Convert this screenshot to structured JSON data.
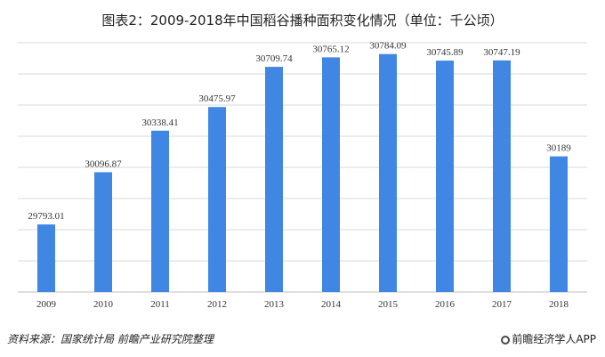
{
  "chart_data": {
    "type": "bar",
    "title": "图表2：2009-2018年中国稻谷播种面积变化情况（单位：千公顷）",
    "categories": [
      "2009",
      "2010",
      "2011",
      "2012",
      "2013",
      "2014",
      "2015",
      "2016",
      "2017",
      "2018"
    ],
    "values": [
      29793.01,
      30096.87,
      30338.41,
      30475.97,
      30709.74,
      30765.12,
      30784.09,
      30745.89,
      30747.19,
      30189
    ],
    "data_labels": [
      "29793.01",
      "30096.87",
      "30338.41",
      "30475.97",
      "30709.74",
      "30765.12",
      "30784.09",
      "30745.89",
      "30747.19",
      "30189"
    ],
    "ylim": [
      29400,
      30850
    ],
    "grid": true,
    "bar_color": "#3f87e2",
    "grid_color": "#d9d9d9"
  },
  "footer": {
    "source": "资料来源：国家统计局 前瞻产业研究院整理",
    "brand": "前瞻经济学人APP"
  }
}
